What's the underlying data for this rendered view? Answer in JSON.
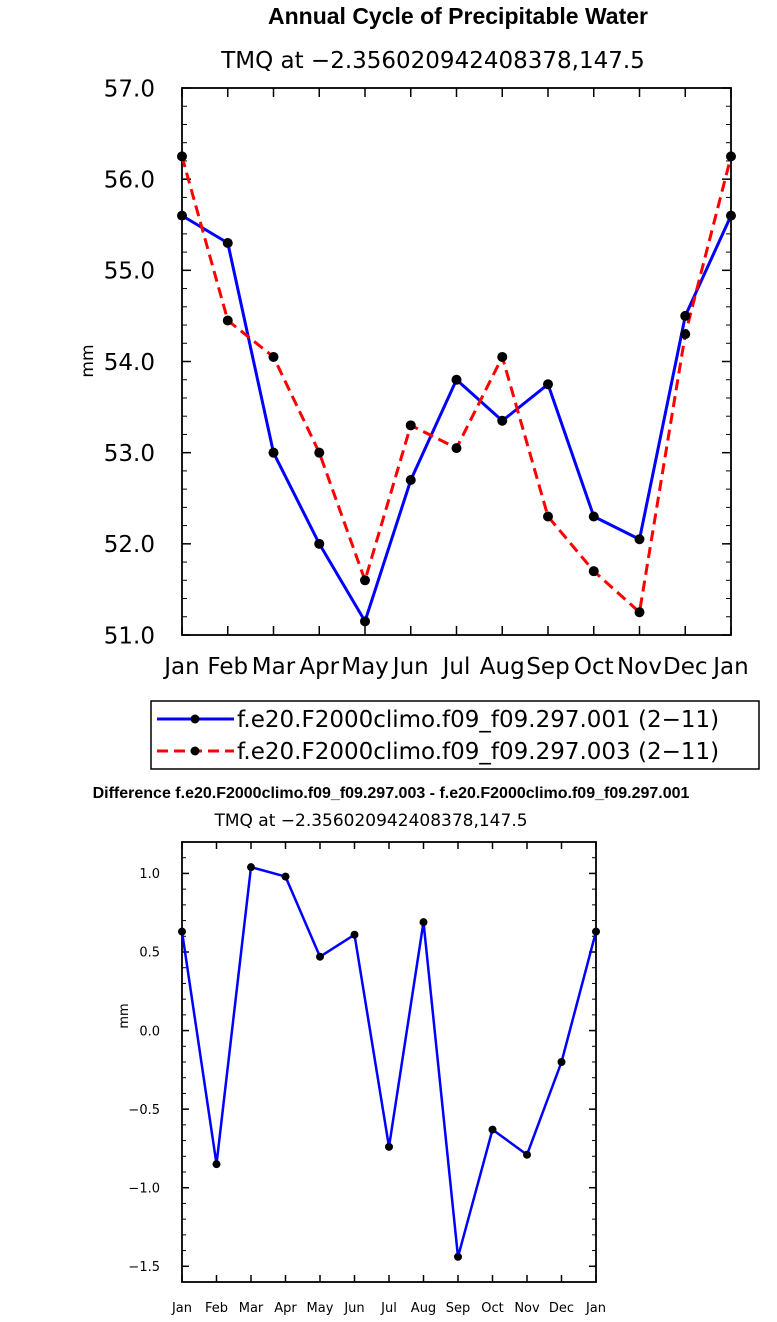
{
  "chart_data": [
    {
      "type": "line",
      "title": "Annual Cycle of Precipitable Water",
      "subtitle": "TMQ at −2.356020942408378,147.5",
      "xlabel": "",
      "ylabel": "mm",
      "categories": [
        "Jan",
        "Feb",
        "Mar",
        "Apr",
        "May",
        "Jun",
        "Jul",
        "Aug",
        "Sep",
        "Oct",
        "Nov",
        "Dec",
        "Jan"
      ],
      "ylim": [
        51.0,
        57.0
      ],
      "yticks": [
        "51.0",
        "52.0",
        "53.0",
        "54.0",
        "55.0",
        "56.0",
        "57.0"
      ],
      "series": [
        {
          "name": "f.e20.F2000climo.f09_f09.297.001 (2−11)",
          "color": "#0000ff",
          "dash": "solid",
          "values": [
            55.6,
            55.3,
            53.0,
            52.0,
            51.15,
            52.7,
            53.8,
            53.35,
            53.75,
            52.3,
            52.05,
            54.5,
            55.6
          ]
        },
        {
          "name": "f.e20.F2000climo.f09_f09.297.003 (2−11)",
          "color": "#ff0000",
          "dash": "dashed",
          "values": [
            56.25,
            54.45,
            54.05,
            53.0,
            51.6,
            53.3,
            53.05,
            54.05,
            52.3,
            51.7,
            51.25,
            54.3,
            56.25
          ]
        }
      ],
      "legend": "bottom-center"
    },
    {
      "type": "line",
      "title": "Difference f.e20.F2000climo.f09_f09.297.003 - f.e20.F2000climo.f09_f09.297.001",
      "subtitle": "TMQ at −2.356020942408378,147.5",
      "xlabel": "",
      "ylabel": "mm",
      "categories": [
        "Jan",
        "Feb",
        "Mar",
        "Apr",
        "May",
        "Jun",
        "Jul",
        "Aug",
        "Sep",
        "Oct",
        "Nov",
        "Dec",
        "Jan"
      ],
      "ylim": [
        -1.6,
        1.2
      ],
      "yticks": [
        "−1.5",
        "−1.0",
        "−0.5",
        "0.0",
        "0.5",
        "1.0"
      ],
      "ytick_values": [
        -1.5,
        -1.0,
        -0.5,
        0.0,
        0.5,
        1.0
      ],
      "series": [
        {
          "name": "difference",
          "color": "#0000ff",
          "dash": "solid",
          "values": [
            0.63,
            -0.85,
            1.04,
            0.98,
            0.47,
            0.61,
            -0.74,
            0.69,
            -1.44,
            -0.63,
            -0.79,
            -0.2,
            0.63
          ]
        }
      ]
    }
  ]
}
